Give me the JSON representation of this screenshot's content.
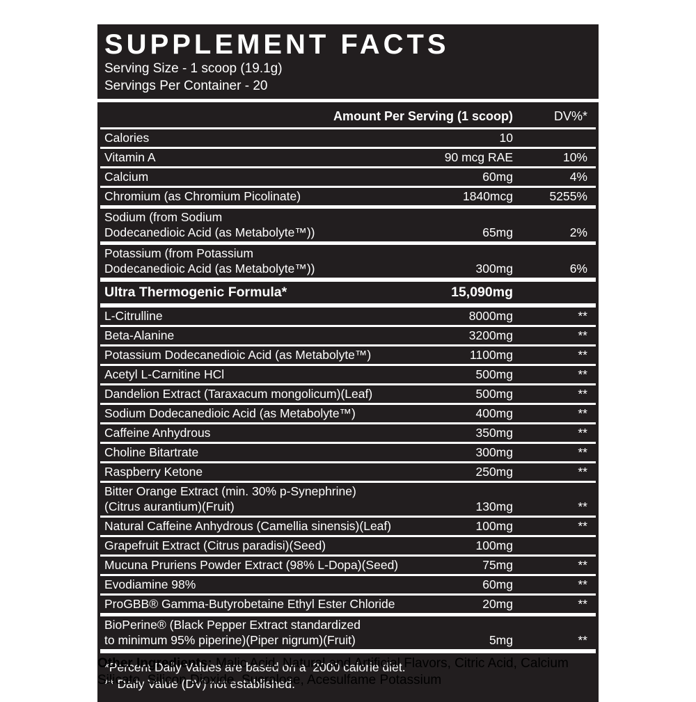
{
  "colors": {
    "label_bg": "#221e1f",
    "label_text": "#ffffff",
    "page_bg": "#ffffff"
  },
  "panel": {
    "title": "SUPPLEMENT FACTS",
    "serving_size": "Serving Size - 1 scoop (19.1g)",
    "servings_per_container": "Servings Per Container - 20",
    "columns": {
      "amount_header": "Amount Per Serving (1 scoop)",
      "dv_header": "DV%*"
    },
    "nutrients": [
      {
        "name_lines": [
          "Calories"
        ],
        "amount": "10",
        "dv": ""
      },
      {
        "name_lines": [
          "Vitamin A"
        ],
        "amount": "90 mcg RAE",
        "dv": "10%"
      },
      {
        "name_lines": [
          "Calcium"
        ],
        "amount": "60mg",
        "dv": "4%"
      },
      {
        "name_lines": [
          "Chromium (as Chromium Picolinate)"
        ],
        "amount": "1840mcg",
        "dv": "5255%"
      },
      {
        "name_lines": [
          "Sodium (from Sodium",
          "Dodecanedioic Acid (as Metabolyte™))"
        ],
        "amount": "65mg",
        "dv": "2%",
        "sep": "thick"
      },
      {
        "name_lines": [
          "Potassium (from Potassium",
          "Dodecanedioic Acid (as Metabolyte™))"
        ],
        "amount": "300mg",
        "dv": "6%",
        "sep": "thick"
      }
    ],
    "section": {
      "title": "Ultra Thermogenic Formula*",
      "amount": "15,090mg"
    },
    "ingredients": [
      {
        "name_lines": [
          "L-Citrulline"
        ],
        "amount": "8000mg",
        "dv": "**"
      },
      {
        "name_lines": [
          "Beta-Alanine"
        ],
        "amount": "3200mg",
        "dv": "**"
      },
      {
        "name_lines": [
          "Potassium Dodecanedioic Acid (as Metabolyte™)"
        ],
        "amount": "1100mg",
        "dv": "**"
      },
      {
        "name_lines": [
          "Acetyl L-Carnitine HCl"
        ],
        "amount": "500mg",
        "dv": "**"
      },
      {
        "name_lines": [
          "Dandelion Extract (Taraxacum mongolicum)(Leaf)"
        ],
        "amount": "500mg",
        "dv": "**"
      },
      {
        "name_lines": [
          "Sodium Dodecanedioic Acid (as Metabolyte™)"
        ],
        "amount": "400mg",
        "dv": "**"
      },
      {
        "name_lines": [
          "Caffeine Anhydrous"
        ],
        "amount": "350mg",
        "dv": "**"
      },
      {
        "name_lines": [
          "Choline Bitartrate"
        ],
        "amount": "300mg",
        "dv": "**"
      },
      {
        "name_lines": [
          "Raspberry Ketone"
        ],
        "amount": "250mg",
        "dv": "**"
      },
      {
        "name_lines": [
          "Bitter Orange Extract (min. 30% p-Synephrine)",
          "(Citrus aurantium)(Fruit)"
        ],
        "amount": "130mg",
        "dv": "**"
      },
      {
        "name_lines": [
          "Natural Caffeine Anhydrous (Camellia sinensis)(Leaf)"
        ],
        "amount": "100mg",
        "dv": "**"
      },
      {
        "name_lines": [
          "Grapefruit Extract (Citrus paradisi)(Seed)"
        ],
        "amount": "100mg",
        "dv": ""
      },
      {
        "name_lines": [
          "Mucuna Pruriens Powder Extract (98% L-Dopa)(Seed)"
        ],
        "amount": "75mg",
        "dv": "**"
      },
      {
        "name_lines": [
          "Evodiamine 98%"
        ],
        "amount": "60mg",
        "dv": "**"
      },
      {
        "name_lines": [
          "ProGBB®  Gamma-Butyrobetaine Ethyl Ester Chloride"
        ],
        "amount": "20mg",
        "dv": "**"
      },
      {
        "name_lines": [
          "BioPerine® (Black Pepper Extract standardized",
          "to minimum 95% piperine)(Piper nigrum)(Fruit)"
        ],
        "amount": "5mg",
        "dv": "**",
        "sep": "thick"
      }
    ],
    "footnotes": [
      "*Percent Daily Values are based on a  2000 calorie diet.",
      "** Daily Value (DV) not established."
    ]
  },
  "other_ingredients": {
    "label": "Other Ingredients:",
    "text": " Malic Acid, Natural and Artificial Flavors, Citric Acid, Calcium Silicate, Silicon Dioxide, Sucralose, Acesulfame Potassium"
  }
}
